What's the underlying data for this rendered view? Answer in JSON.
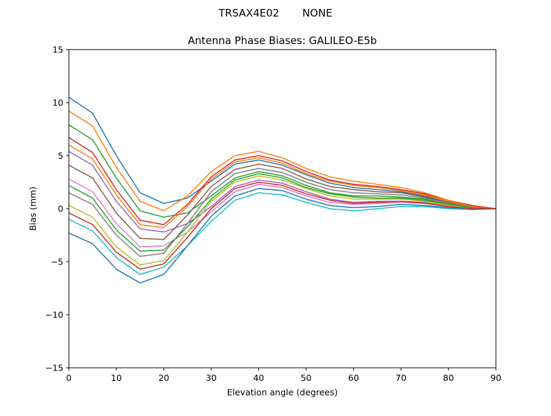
{
  "chart_data": {
    "type": "line",
    "suptitle": "TRSAX4E02       NONE",
    "title": "Antenna Phase Biases: GALILEO-E5b",
    "xlabel": "Elevation angle (degrees)",
    "ylabel": "Bias (mm)",
    "xlim": [
      0,
      90
    ],
    "ylim": [
      -15,
      15
    ],
    "xticks": [
      0,
      10,
      20,
      30,
      40,
      50,
      60,
      70,
      80,
      90
    ],
    "yticks": [
      -15,
      -10,
      -5,
      0,
      5,
      10,
      15
    ],
    "grid": false,
    "x": [
      0,
      5,
      10,
      15,
      20,
      25,
      30,
      35,
      40,
      45,
      50,
      55,
      60,
      65,
      70,
      75,
      80,
      85,
      90
    ],
    "colors": [
      "#1f77b4",
      "#ff7f0e",
      "#2ca02c",
      "#d62728",
      "#9467bd",
      "#8c564b",
      "#e377c2",
      "#7f7f7f",
      "#bcbd22",
      "#17becf"
    ],
    "series": [
      {
        "values": [
          10.5,
          9.0,
          5.0,
          1.5,
          0.5,
          1.0,
          2.6,
          4.2,
          4.6,
          4.1,
          3.2,
          2.4,
          2.0,
          1.8,
          1.6,
          1.2,
          0.6,
          0.2,
          0
        ]
      },
      {
        "values": [
          9.2,
          7.8,
          3.9,
          0.7,
          -0.2,
          1.2,
          3.5,
          5.0,
          5.4,
          4.8,
          3.8,
          3.0,
          2.6,
          2.3,
          2.0,
          1.5,
          0.8,
          0.3,
          0
        ]
      },
      {
        "values": [
          7.9,
          6.5,
          2.9,
          -0.2,
          -0.8,
          -0.4,
          1.2,
          2.9,
          3.5,
          3.1,
          2.2,
          1.5,
          1.2,
          1.2,
          1.1,
          0.9,
          0.4,
          0.1,
          0
        ]
      },
      {
        "values": [
          6.7,
          5.3,
          1.8,
          -1.1,
          -1.5,
          0.4,
          3.0,
          4.6,
          5.0,
          4.5,
          3.5,
          2.7,
          2.3,
          2.1,
          1.8,
          1.4,
          0.7,
          0.3,
          0
        ]
      },
      {
        "values": [
          5.4,
          4.1,
          0.7,
          -1.9,
          -2.2,
          -1.4,
          0.2,
          2.1,
          2.7,
          2.4,
          1.6,
          0.9,
          0.6,
          0.7,
          0.7,
          0.6,
          0.2,
          0,
          0
        ]
      },
      {
        "values": [
          4.1,
          2.9,
          -0.4,
          -2.8,
          -2.9,
          -0.6,
          2.1,
          3.7,
          4.2,
          3.8,
          2.8,
          2.1,
          1.8,
          1.6,
          1.5,
          1.1,
          0.6,
          0.2,
          0
        ]
      },
      {
        "values": [
          2.8,
          1.6,
          -1.4,
          -3.6,
          -3.5,
          -2.2,
          -0.3,
          1.6,
          2.3,
          2.0,
          1.2,
          0.6,
          0.4,
          0.5,
          0.6,
          0.5,
          0.2,
          0,
          0
        ]
      },
      {
        "values": [
          1.5,
          0.4,
          -2.5,
          -4.5,
          -4.2,
          -1.4,
          1.6,
          3.3,
          3.8,
          3.4,
          2.5,
          1.8,
          1.5,
          1.4,
          1.3,
          1.0,
          0.5,
          0.1,
          0
        ]
      },
      {
        "values": [
          0.3,
          -0.8,
          -3.6,
          -5.3,
          -4.9,
          -2.2,
          0.7,
          2.5,
          3.1,
          2.7,
          1.9,
          1.2,
          0.9,
          0.9,
          0.9,
          0.7,
          0.3,
          0.1,
          0
        ]
      },
      {
        "values": [
          -1.0,
          -2.1,
          -4.6,
          -6.2,
          -5.5,
          -3.5,
          -1.2,
          0.8,
          1.5,
          1.3,
          0.6,
          0,
          -0.2,
          0,
          0.2,
          0.2,
          0,
          -0.1,
          0
        ]
      },
      {
        "values": [
          -2.3,
          -3.3,
          -5.7,
          -7.0,
          -6.2,
          -3.5,
          -0.7,
          1.2,
          1.9,
          1.7,
          0.9,
          0.3,
          0.1,
          0.2,
          0.4,
          0.3,
          0.1,
          0,
          0
        ]
      },
      {
        "values": [
          6.0,
          4.7,
          1.3,
          -1.5,
          -1.8,
          0.2,
          2.8,
          4.4,
          4.8,
          4.3,
          3.3,
          2.6,
          2.2,
          2.0,
          1.7,
          1.3,
          0.7,
          0.2,
          0
        ]
      },
      {
        "values": [
          2.2,
          1.0,
          -2.0,
          -4.0,
          -3.9,
          -1.7,
          0.9,
          2.7,
          3.3,
          2.9,
          2.0,
          1.4,
          1.1,
          1.0,
          1.0,
          0.8,
          0.4,
          0.1,
          0
        ]
      },
      {
        "values": [
          -0.4,
          -1.5,
          -4.1,
          -5.7,
          -5.2,
          -2.7,
          0.0,
          1.9,
          2.5,
          2.2,
          1.4,
          0.8,
          0.5,
          0.6,
          0.7,
          0.5,
          0.2,
          0,
          0
        ]
      }
    ]
  }
}
